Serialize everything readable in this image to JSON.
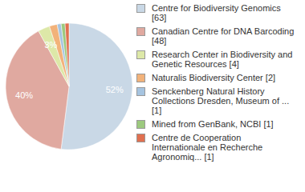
{
  "chart_data": {
    "type": "pie",
    "categories": [
      "Centre for Biodiversity Genomics [63]",
      "Canadian Centre for DNA Barcoding [48]",
      "Research Center in Biodiversity and Genetic Resources [4]",
      "Naturalis Biodiversity Center [2]",
      "Senckenberg Natural History Collections Dresden, Museum of ... [1]",
      "Mined from GenBank, NCBI [1]",
      "Centre de Cooperation Internationale en Recherche Agronomiq... [1]"
    ],
    "values": [
      52,
      40,
      3,
      2,
      1,
      1,
      1
    ],
    "value_labels": [
      "52%",
      "40%",
      "3%",
      null,
      null,
      null,
      null
    ],
    "colors": [
      "#c9d8e6",
      "#e0a9a0",
      "#dde8a8",
      "#f2b27a",
      "#a6c4e0",
      "#9cc97e",
      "#e07050"
    ],
    "data_labels": true,
    "legend": "right"
  }
}
